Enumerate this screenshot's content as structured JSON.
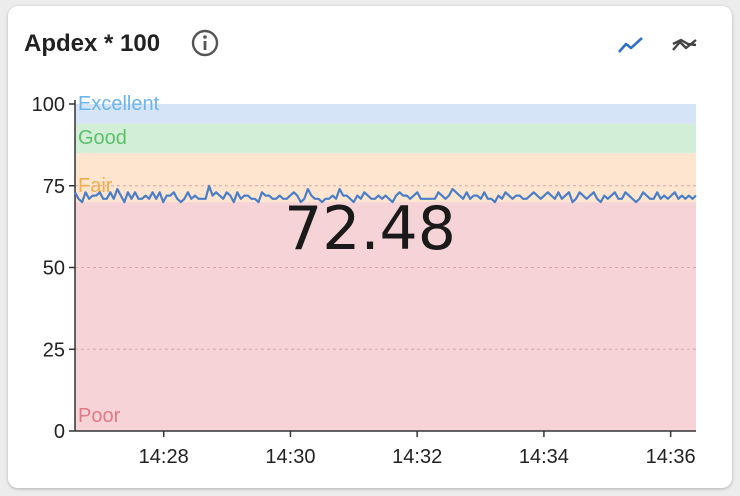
{
  "card": {
    "title": "Apdex * 100",
    "current_value": "72.48",
    "info_icon": "info-icon",
    "toolbar": [
      {
        "name": "line-chart-icon",
        "color": "#2f6fd0",
        "active": true
      },
      {
        "name": "trend-chart-icon",
        "color": "#444444",
        "active": false
      }
    ]
  },
  "chart_data": {
    "type": "line",
    "ylim": [
      0,
      100
    ],
    "yticks": [
      "0",
      "25",
      "50",
      "75",
      "100"
    ],
    "xticks": [
      "14:28",
      "14:30",
      "14:32",
      "14:34",
      "14:36"
    ],
    "xlim_minutes": [
      26.6,
      36.4
    ],
    "line_color": "#4a7fc8",
    "bands": [
      {
        "label": "Poor",
        "from": 0,
        "to": 70,
        "fill": "#f5d3d6",
        "text_color": "#e07a84"
      },
      {
        "label": "Fair",
        "from": 70,
        "to": 85,
        "fill": "#fde5cf",
        "text_color": "#f2ad4e"
      },
      {
        "label": "Good",
        "from": 85,
        "to": 94,
        "fill": "#d3eed6",
        "text_color": "#5cc06a"
      },
      {
        "label": "Excellent",
        "from": 94,
        "to": 100,
        "fill": "#d5e4f7",
        "text_color": "#6cb4ee"
      }
    ],
    "series": [
      {
        "values": [
          73,
          71,
          70,
          73,
          71,
          72,
          72,
          73,
          71,
          71,
          73,
          71,
          74,
          72,
          70,
          73,
          71,
          73,
          71,
          71,
          72,
          71,
          73,
          71,
          73,
          70,
          72,
          72,
          73,
          71,
          70,
          71,
          73,
          71,
          72,
          71,
          71,
          71,
          75,
          72,
          73,
          72,
          71,
          73,
          72,
          70,
          73,
          71,
          72,
          72,
          71,
          71,
          70,
          73,
          72,
          72,
          71,
          71,
          72,
          71,
          71,
          72,
          73,
          72,
          70,
          71,
          74,
          72,
          71,
          71,
          70,
          71,
          71,
          72,
          71,
          74,
          72,
          72,
          71,
          70,
          72,
          71,
          73,
          72,
          71,
          71,
          72,
          71,
          72,
          71,
          70,
          72,
          73,
          72,
          72,
          71,
          72,
          73,
          71,
          71,
          71,
          71,
          71,
          73,
          72,
          71,
          72,
          74,
          73,
          72,
          71,
          73,
          71,
          72,
          72,
          71,
          73,
          71,
          71,
          70,
          72,
          71,
          73,
          72,
          71,
          72,
          72,
          71,
          71,
          72,
          73,
          72,
          71,
          72,
          73,
          72,
          71,
          73,
          71,
          72,
          73,
          70,
          71,
          73,
          72,
          71,
          72,
          73,
          71,
          70,
          72,
          71,
          72,
          73,
          71,
          71,
          73,
          72,
          71,
          70,
          71,
          73,
          72,
          71,
          71,
          73,
          71,
          72,
          71,
          72,
          73,
          71,
          72,
          71,
          72,
          71,
          72
        ]
      }
    ]
  }
}
